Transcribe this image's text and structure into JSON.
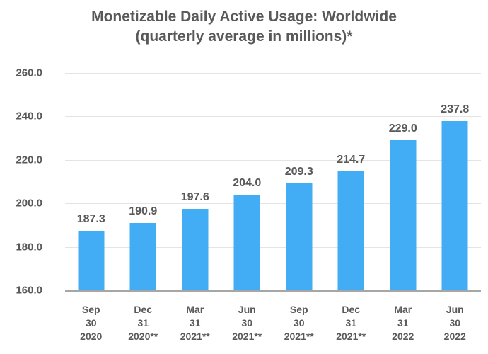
{
  "chart_data": {
    "type": "bar",
    "title": "Monetizable Daily Active Usage: Worldwide (quarterly average in millions)*",
    "title_lines": [
      "Monetizable Daily Active Usage: Worldwide",
      "(quarterly average in millions)*"
    ],
    "categories": [
      [
        "Sep",
        "30",
        "2020"
      ],
      [
        "Dec",
        "31",
        "2020**"
      ],
      [
        "Mar",
        "31",
        "2021**"
      ],
      [
        "Jun",
        "30",
        "2021**"
      ],
      [
        "Sep",
        "30",
        "2021**"
      ],
      [
        "Dec",
        "31",
        "2021**"
      ],
      [
        "Mar",
        "31",
        "2022"
      ],
      [
        "Jun",
        "30",
        "2022"
      ]
    ],
    "values": [
      187.3,
      190.9,
      197.6,
      204.0,
      209.3,
      214.7,
      229.0,
      237.8
    ],
    "value_labels": [
      "187.3",
      "190.9",
      "197.6",
      "204.0",
      "209.3",
      "214.7",
      "229.0",
      "237.8"
    ],
    "xlabel": "",
    "ylabel": "",
    "ylim": [
      160.0,
      260.0
    ],
    "yticks": [
      260.0,
      240.0,
      220.0,
      200.0,
      180.0,
      160.0
    ],
    "ytick_labels": [
      "260.0",
      "240.0",
      "220.0",
      "200.0",
      "180.0",
      "160.0"
    ],
    "grid": true,
    "legend": false,
    "colors": {
      "bar": "#42ACF5",
      "text": "#595959",
      "gridline": "#E4E4E4",
      "axis_line": "#A6A6A6",
      "background": "#FFFFFF"
    }
  }
}
